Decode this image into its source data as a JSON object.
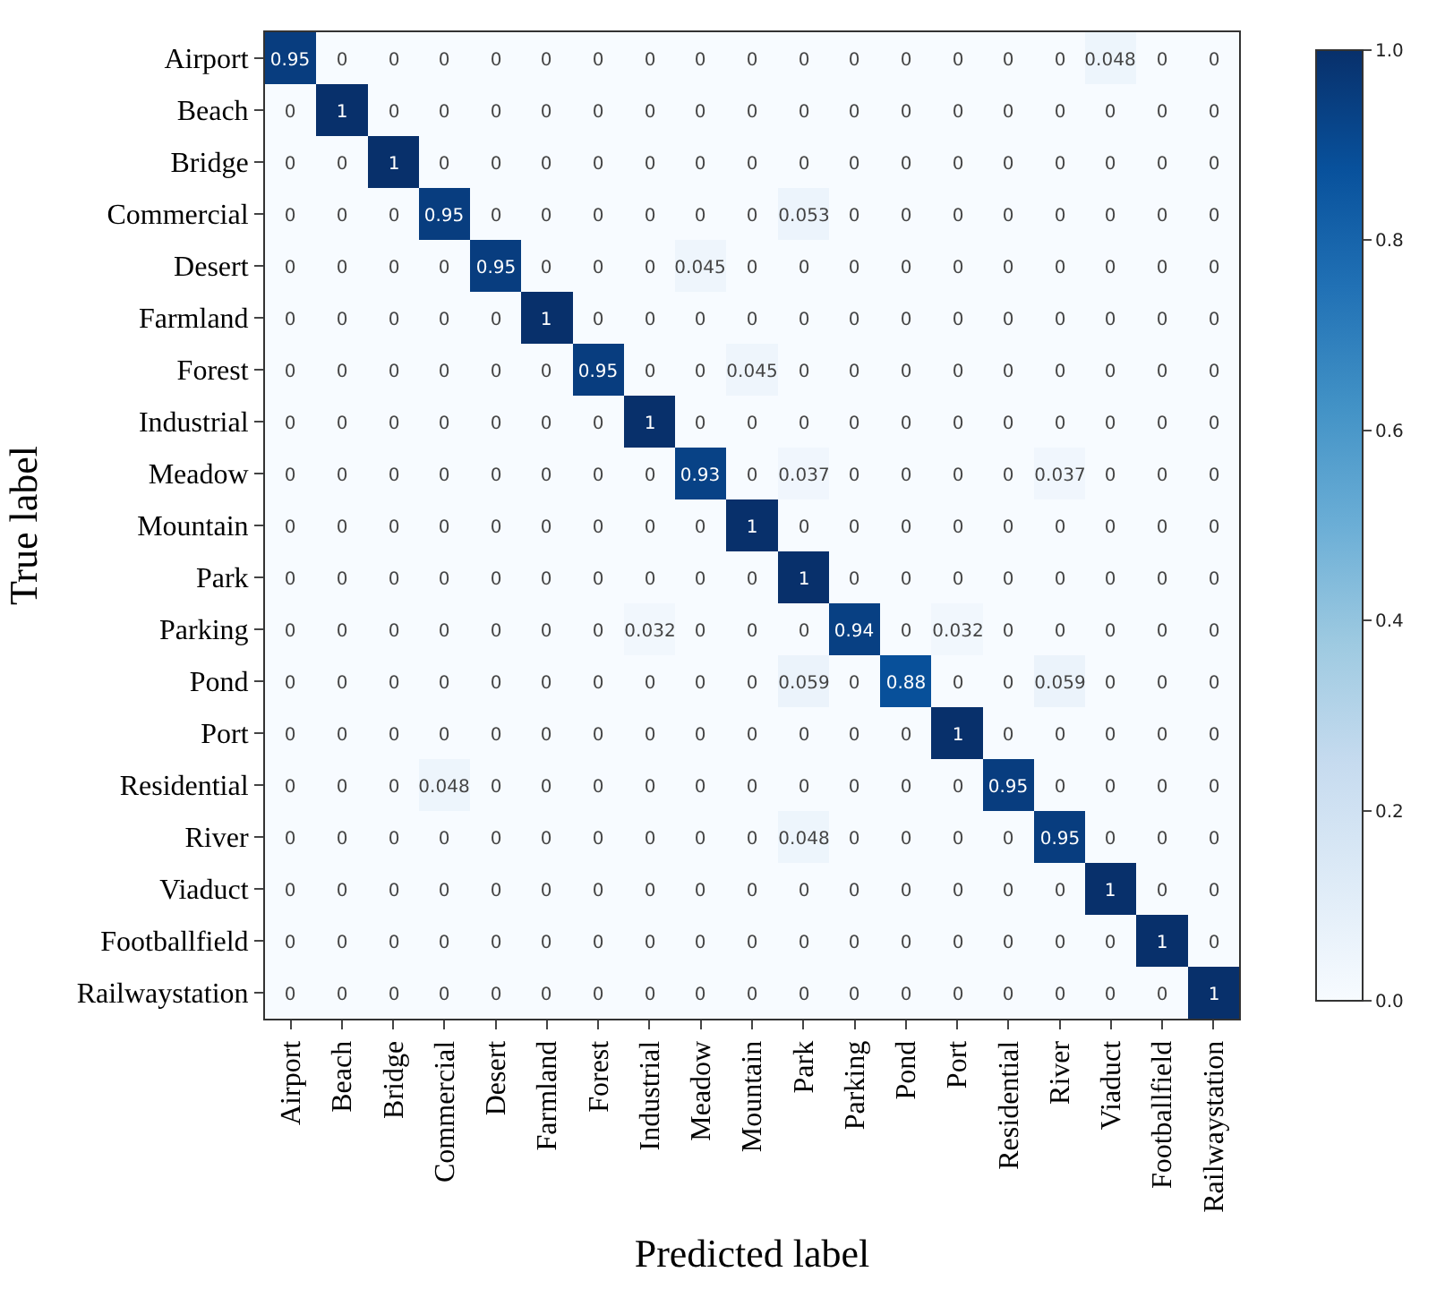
{
  "chart_data": {
    "type": "heatmap",
    "xlabel": "Predicted label",
    "ylabel": "True label",
    "categories": [
      "Airport",
      "Beach",
      "Bridge",
      "Commercial",
      "Desert",
      "Farmland",
      "Forest",
      "Industrial",
      "Meadow",
      "Mountain",
      "Park",
      "Parking",
      "Pond",
      "Port",
      "Residential",
      "River",
      "Viaduct",
      "Footballfield",
      "Railwaystation"
    ],
    "y_categories": [
      "Airport",
      "Beach",
      "Bridge",
      "Commercial",
      "Desert",
      "Farmland",
      "Forest",
      "Industrial",
      "Meadow",
      "Mountain",
      "Park",
      "Parking",
      "Pond",
      "Port",
      "Residential",
      "River",
      "Viaduct",
      "Footballfield",
      "Railwaystation"
    ],
    "cells": [
      [
        0.95,
        0,
        0,
        0,
        0,
        0,
        0,
        0,
        0,
        0,
        0,
        0,
        0,
        0,
        0,
        0,
        0.048,
        0,
        0
      ],
      [
        0,
        1,
        0,
        0,
        0,
        0,
        0,
        0,
        0,
        0,
        0,
        0,
        0,
        0,
        0,
        0,
        0,
        0,
        0
      ],
      [
        0,
        0,
        1,
        0,
        0,
        0,
        0,
        0,
        0,
        0,
        0,
        0,
        0,
        0,
        0,
        0,
        0,
        0,
        0
      ],
      [
        0,
        0,
        0,
        0.95,
        0,
        0,
        0,
        0,
        0,
        0,
        0.053,
        0,
        0,
        0,
        0,
        0,
        0,
        0,
        0
      ],
      [
        0,
        0,
        0,
        0,
        0.95,
        0,
        0,
        0,
        0.045,
        0,
        0,
        0,
        0,
        0,
        0,
        0,
        0,
        0,
        0
      ],
      [
        0,
        0,
        0,
        0,
        0,
        1,
        0,
        0,
        0,
        0,
        0,
        0,
        0,
        0,
        0,
        0,
        0,
        0,
        0
      ],
      [
        0,
        0,
        0,
        0,
        0,
        0,
        0.95,
        0,
        0,
        0.045,
        0,
        0,
        0,
        0,
        0,
        0,
        0,
        0,
        0
      ],
      [
        0,
        0,
        0,
        0,
        0,
        0,
        0,
        1,
        0,
        0,
        0,
        0,
        0,
        0,
        0,
        0,
        0,
        0,
        0
      ],
      [
        0,
        0,
        0,
        0,
        0,
        0,
        0,
        0,
        0.93,
        0,
        0.037,
        0,
        0,
        0,
        0,
        0.037,
        0,
        0,
        0
      ],
      [
        0,
        0,
        0,
        0,
        0,
        0,
        0,
        0,
        0,
        1,
        0,
        0,
        0,
        0,
        0,
        0,
        0,
        0,
        0
      ],
      [
        0,
        0,
        0,
        0,
        0,
        0,
        0,
        0,
        0,
        0,
        1,
        0,
        0,
        0,
        0,
        0,
        0,
        0,
        0
      ],
      [
        0,
        0,
        0,
        0,
        0,
        0,
        0,
        0.032,
        0,
        0,
        0,
        0.94,
        0,
        0.032,
        0,
        0,
        0,
        0,
        0
      ],
      [
        0,
        0,
        0,
        0,
        0,
        0,
        0,
        0,
        0,
        0,
        0.059,
        0,
        0.88,
        0,
        0,
        0.059,
        0,
        0,
        0
      ],
      [
        0,
        0,
        0,
        0,
        0,
        0,
        0,
        0,
        0,
        0,
        0,
        0,
        0,
        1,
        0,
        0,
        0,
        0,
        0
      ],
      [
        0,
        0,
        0,
        0.048,
        0,
        0,
        0,
        0,
        0,
        0,
        0,
        0,
        0,
        0,
        0.95,
        0,
        0,
        0,
        0
      ],
      [
        0,
        0,
        0,
        0,
        0,
        0,
        0,
        0,
        0,
        0,
        0.048,
        0,
        0,
        0,
        0,
        0.95,
        0,
        0,
        0
      ],
      [
        0,
        0,
        0,
        0,
        0,
        0,
        0,
        0,
        0,
        0,
        0,
        0,
        0,
        0,
        0,
        0,
        1,
        0,
        0
      ],
      [
        0,
        0,
        0,
        0,
        0,
        0,
        0,
        0,
        0,
        0,
        0,
        0,
        0,
        0,
        0,
        0,
        0,
        1,
        0
      ],
      [
        0,
        0,
        0,
        0,
        0,
        0,
        0,
        0,
        0,
        0,
        0,
        0,
        0,
        0,
        0,
        0,
        0,
        0,
        1
      ]
    ],
    "clim": [
      0,
      1
    ],
    "cticks": [
      {
        "value": 0,
        "label": "0.0"
      },
      {
        "value": 0.2,
        "label": "0.2"
      },
      {
        "value": 0.4,
        "label": "0.4"
      },
      {
        "value": 0.6,
        "label": "0.6"
      },
      {
        "value": 0.8,
        "label": "0.8"
      },
      {
        "value": 1,
        "label": "1.0"
      }
    ],
    "data_labels": true
  }
}
